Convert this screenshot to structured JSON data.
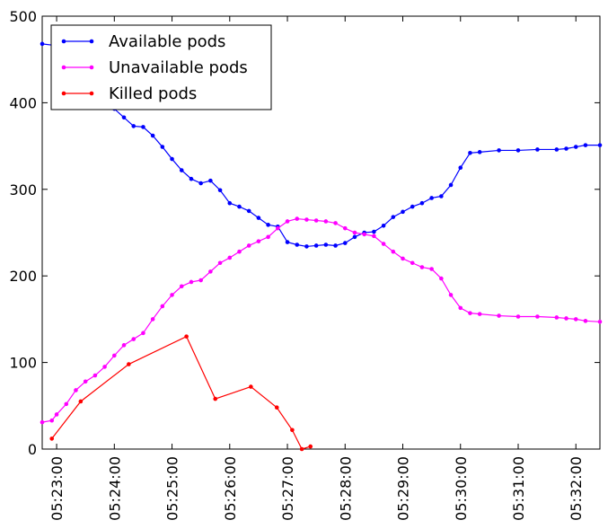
{
  "chart_data": {
    "type": "line",
    "title": "",
    "xlabel": "",
    "ylabel": "",
    "xlim": [
      "05:22:45",
      "05:32:25"
    ],
    "ylim": [
      0,
      500
    ],
    "y_ticks": [
      0,
      100,
      200,
      300,
      400,
      500
    ],
    "x_ticks": [
      "05:23:00",
      "05:24:00",
      "05:25:00",
      "05:26:00",
      "05:27:00",
      "05:28:00",
      "05:29:00",
      "05:30:00",
      "05:31:00",
      "05:32:00"
    ],
    "grid": false,
    "legend_position": "top-left",
    "series": [
      {
        "name": "Available pods",
        "color": "#0000ff",
        "marker": "dot",
        "x": [
          "05:22:45",
          "05:23:00",
          "05:23:15",
          "05:23:30",
          "05:23:45",
          "05:24:00",
          "05:24:10",
          "05:24:20",
          "05:24:30",
          "05:24:40",
          "05:24:50",
          "05:25:00",
          "05:25:10",
          "05:25:20",
          "05:25:30",
          "05:25:40",
          "05:25:50",
          "05:26:00",
          "05:26:10",
          "05:26:20",
          "05:26:30",
          "05:26:40",
          "05:26:50",
          "05:27:00",
          "05:27:10",
          "05:27:20",
          "05:27:30",
          "05:27:40",
          "05:27:50",
          "05:28:00",
          "05:28:10",
          "05:28:20",
          "05:28:30",
          "05:28:40",
          "05:28:50",
          "05:29:00",
          "05:29:10",
          "05:29:20",
          "05:29:30",
          "05:29:40",
          "05:29:50",
          "05:30:00",
          "05:30:10",
          "05:30:20",
          "05:30:40",
          "05:31:00",
          "05:31:20",
          "05:31:40",
          "05:31:50",
          "05:32:00",
          "05:32:10",
          "05:32:25"
        ],
        "y": [
          468,
          466,
          455,
          437,
          415,
          393,
          383,
          373,
          372,
          362,
          349,
          335,
          322,
          312,
          307,
          310,
          299,
          284,
          280,
          275,
          267,
          259,
          257,
          239,
          236,
          234,
          235,
          236,
          235,
          238,
          245,
          250,
          251,
          258,
          268,
          274,
          280,
          284,
          290,
          292,
          305,
          325,
          342,
          343,
          345,
          345,
          346,
          346,
          347,
          349,
          351,
          351
        ]
      },
      {
        "name": "Unavailable pods",
        "color": "#ff00ff",
        "marker": "dot",
        "x": [
          "05:22:45",
          "05:22:55",
          "05:23:00",
          "05:23:10",
          "05:23:20",
          "05:23:30",
          "05:23:40",
          "05:23:50",
          "05:24:00",
          "05:24:10",
          "05:24:20",
          "05:24:30",
          "05:24:40",
          "05:24:50",
          "05:25:00",
          "05:25:10",
          "05:25:20",
          "05:25:30",
          "05:25:40",
          "05:25:50",
          "05:26:00",
          "05:26:10",
          "05:26:20",
          "05:26:30",
          "05:26:40",
          "05:26:50",
          "05:27:00",
          "05:27:10",
          "05:27:20",
          "05:27:30",
          "05:27:40",
          "05:27:50",
          "05:28:00",
          "05:28:10",
          "05:28:20",
          "05:28:30",
          "05:28:40",
          "05:28:50",
          "05:29:00",
          "05:29:10",
          "05:29:20",
          "05:29:30",
          "05:29:40",
          "05:29:50",
          "05:30:00",
          "05:30:10",
          "05:30:20",
          "05:30:40",
          "05:31:00",
          "05:31:20",
          "05:31:40",
          "05:31:50",
          "05:32:00",
          "05:32:10",
          "05:32:25"
        ],
        "y": [
          31,
          33,
          40,
          52,
          68,
          78,
          85,
          95,
          108,
          120,
          127,
          134,
          150,
          165,
          178,
          188,
          193,
          195,
          205,
          215,
          221,
          228,
          235,
          240,
          245,
          255,
          263,
          266,
          265,
          264,
          263,
          261,
          255,
          250,
          248,
          246,
          237,
          228,
          220,
          215,
          210,
          208,
          197,
          178,
          163,
          157,
          156,
          154,
          153,
          153,
          152,
          151,
          150,
          148,
          147
        ]
      },
      {
        "name": "Killed pods",
        "color": "#ff0000",
        "marker": "dot",
        "x": [
          "05:22:55",
          "05:23:25",
          "05:24:15",
          "05:25:15",
          "05:25:45",
          "05:26:22",
          "05:26:49",
          "05:27:05",
          "05:27:15",
          "05:27:24"
        ],
        "y": [
          12,
          55,
          98,
          130,
          58,
          72,
          48,
          22,
          0,
          3
        ]
      }
    ]
  }
}
